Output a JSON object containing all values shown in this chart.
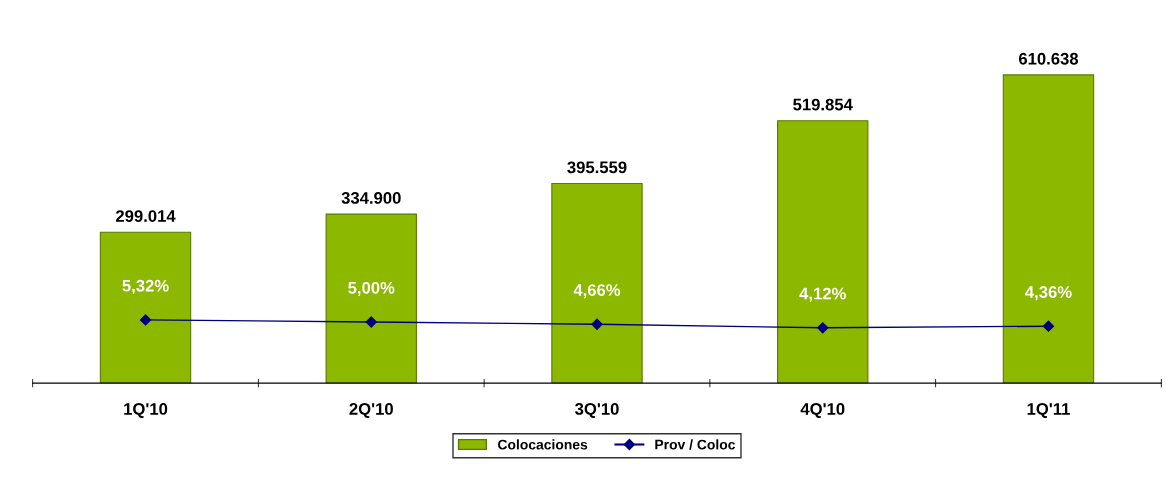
{
  "chart_data": {
    "type": "bar",
    "categories": [
      "1Q'10",
      "2Q'10",
      "3Q'10",
      "4Q'10",
      "1Q'11"
    ],
    "series": [
      {
        "name": "Colocaciones",
        "color": "#8cb800",
        "values": [
          299014,
          334900,
          395559,
          519854,
          610638
        ],
        "value_labels": [
          "299.014",
          "334.900",
          "395.559",
          "519.854",
          "610.638"
        ]
      },
      {
        "name": "Prov / Coloc",
        "type": "line",
        "axis": "y2",
        "color": "#000080",
        "marker": "diamond",
        "values": [
          5.32,
          5.0,
          4.66,
          4.12,
          4.36
        ],
        "value_labels": [
          "5,32%",
          "5,00%",
          "4,66%",
          "4,12%",
          "4,36%"
        ]
      }
    ],
    "tick_labels": "x",
    "grid": false,
    "legend": "bottom"
  }
}
